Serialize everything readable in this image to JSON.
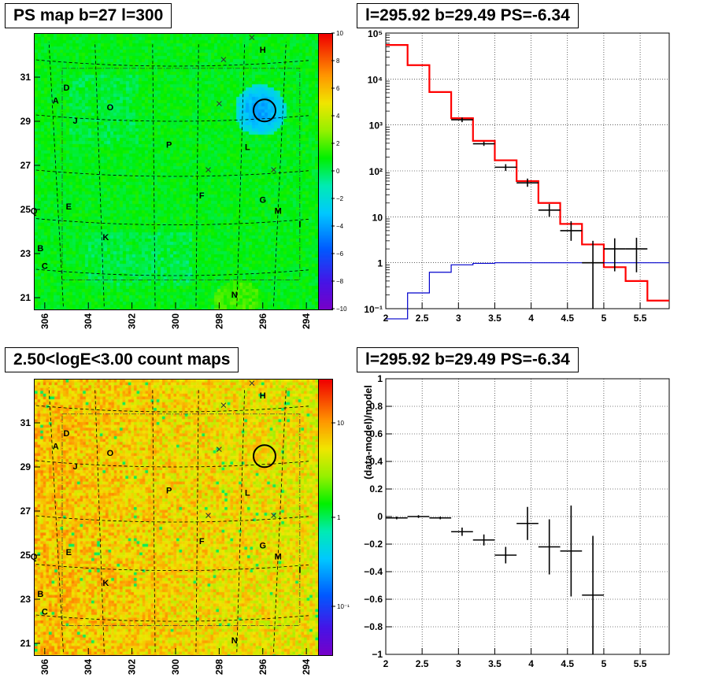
{
  "panels": {
    "ps_map": {
      "title": "PS map b=27 l=300",
      "x_ticks": [
        "306",
        "304",
        "302",
        "300",
        "298",
        "296",
        "294"
      ],
      "y_ticks": [
        "31",
        "29",
        "27",
        "25",
        "23",
        "21"
      ],
      "colorbar_ticks": [
        "10",
        "8",
        "6",
        "4",
        "2",
        "0",
        "−2",
        "−4",
        "−6",
        "−8",
        "−10"
      ],
      "labels": [
        "A",
        "B",
        "C",
        "D",
        "E",
        "F",
        "G",
        "H",
        "I",
        "J",
        "K",
        "L",
        "M",
        "N",
        "O",
        "P",
        "Q"
      ]
    },
    "spectrum": {
      "title": "l=295.92 b=29.49 PS=-6.34",
      "x_ticks": [
        "2",
        "2.5",
        "3",
        "3.5",
        "4",
        "4.5",
        "5",
        "5.5"
      ],
      "y_ticks": [
        "10⁵",
        "10⁴",
        "10³",
        "10²",
        "10",
        "1",
        "10⁻¹"
      ]
    },
    "count_map": {
      "title": "2.50<logE<3.00 count maps",
      "x_ticks": [
        "306",
        "304",
        "302",
        "300",
        "298",
        "296",
        "294"
      ],
      "y_ticks": [
        "31",
        "29",
        "27",
        "25",
        "23",
        "21"
      ],
      "colorbar_ticks": [
        "10",
        "1",
        "10⁻¹"
      ],
      "labels": [
        "A",
        "B",
        "C",
        "D",
        "E",
        "F",
        "G",
        "H",
        "I",
        "J",
        "K",
        "L",
        "M",
        "N",
        "O",
        "P",
        "Q"
      ]
    },
    "residual": {
      "title": "l=295.92 b=29.49 PS=-6.34",
      "ylabel": "(data-model)/model",
      "x_ticks": [
        "2",
        "2.5",
        "3",
        "3.5",
        "4",
        "4.5",
        "5",
        "5.5"
      ],
      "y_ticks": [
        "1",
        "0.8",
        "0.6",
        "0.4",
        "0.2",
        "0",
        "−0.2",
        "−0.4",
        "−0.6",
        "−0.8",
        "−1"
      ]
    }
  },
  "chart_data": [
    {
      "type": "heatmap",
      "title": "PS map b=27 l=300",
      "x_range": [
        306.5,
        293.5
      ],
      "y_range": [
        20.5,
        33
      ],
      "z_range": [
        -10,
        10
      ],
      "colorbar": "diverging rainbow",
      "source_marker": {
        "l": 295.92,
        "b": 29.49
      },
      "cross_markers": [
        {
          "l": 296.5,
          "b": 32.8
        },
        {
          "l": 297.8,
          "b": 31.8
        },
        {
          "l": 298,
          "b": 29.8
        },
        {
          "l": 298.5,
          "b": 26.8
        },
        {
          "l": 295.5,
          "b": 26.8
        }
      ]
    },
    {
      "type": "line",
      "title": "l=295.92 b=29.49 PS=-6.34",
      "x_range": [
        2,
        5.9
      ],
      "y_scale": "log",
      "y_range": [
        0.1,
        100000
      ],
      "grid": true,
      "series": [
        {
          "color": "#ff0000",
          "edges": [
            2,
            2.3,
            2.6,
            2.9,
            3.2,
            3.5,
            3.8,
            4.1,
            4.4,
            4.7,
            5,
            5.3,
            5.6,
            5.9
          ],
          "values": [
            55000,
            20000,
            5200,
            1400,
            450,
            170,
            60,
            20,
            7,
            2.5,
            0.8,
            0.4,
            0.15
          ]
        },
        {
          "color": "#0000cc",
          "edges": [
            2,
            2.3,
            2.6,
            2.9,
            3.2,
            3.5,
            3.8,
            4.1,
            4.4,
            4.7,
            5,
            5.3,
            5.6,
            5.9
          ],
          "values": [
            0.06,
            0.22,
            0.62,
            0.9,
            0.97,
            1,
            1,
            1,
            1,
            1,
            1,
            1,
            1
          ]
        },
        {
          "color": "#000000",
          "points": [
            {
              "x": 3.05,
              "y": 1300,
              "xerr": 0.15,
              "lo": 1150,
              "hi": 1450
            },
            {
              "x": 3.35,
              "y": 390,
              "xerr": 0.15,
              "lo": 350,
              "hi": 430
            },
            {
              "x": 3.65,
              "y": 120,
              "xerr": 0.15,
              "lo": 100,
              "hi": 140
            },
            {
              "x": 3.95,
              "y": 55,
              "xerr": 0.15,
              "lo": 45,
              "hi": 68
            },
            {
              "x": 4.25,
              "y": 14,
              "xerr": 0.15,
              "lo": 10,
              "hi": 19
            },
            {
              "x": 4.55,
              "y": 5,
              "xerr": 0.15,
              "lo": 3,
              "hi": 8
            },
            {
              "x": 4.85,
              "y": 1,
              "xerr": 0.15,
              "lo": 0.1,
              "hi": 3
            },
            {
              "x": 5.15,
              "y": 2,
              "xerr": 0.15,
              "lo": 0.65,
              "hi": 3.4
            },
            {
              "x": 5.45,
              "y": 2,
              "xerr": 0.15,
              "lo": 0.62,
              "hi": 3.5
            }
          ]
        }
      ]
    },
    {
      "type": "heatmap",
      "title": "2.50<logE<3.00 count maps",
      "x_range": [
        306.5,
        293.5
      ],
      "y_range": [
        20.5,
        33
      ],
      "z_scale": "log",
      "colorbar": "rainbow"
    },
    {
      "type": "scatter",
      "title": "l=295.92 b=29.49 PS=-6.34",
      "ylabel": "(data-model)/model",
      "x_range": [
        2,
        5.9
      ],
      "y_range": [
        -1,
        1
      ],
      "grid": true,
      "points": [
        {
          "x": 2.15,
          "y": -0.01,
          "xerr": 0.15,
          "err": 0.01
        },
        {
          "x": 2.45,
          "y": 0,
          "xerr": 0.15,
          "err": 0.01
        },
        {
          "x": 2.75,
          "y": -0.01,
          "xerr": 0.15,
          "err": 0.01
        },
        {
          "x": 3.05,
          "y": -0.11,
          "xerr": 0.15,
          "err": 0.03
        },
        {
          "x": 3.35,
          "y": -0.17,
          "xerr": 0.15,
          "err": 0.04
        },
        {
          "x": 3.65,
          "y": -0.28,
          "xerr": 0.15,
          "err": 0.06
        },
        {
          "x": 3.95,
          "y": -0.05,
          "xerr": 0.15,
          "err": 0.12
        },
        {
          "x": 4.25,
          "y": -0.22,
          "xerr": 0.15,
          "err": 0.2
        },
        {
          "x": 4.55,
          "y": -0.25,
          "xerr": 0.15,
          "err": 0.33
        },
        {
          "x": 4.85,
          "y": -0.57,
          "xerr": 0.15,
          "err": 0.43
        }
      ]
    }
  ]
}
